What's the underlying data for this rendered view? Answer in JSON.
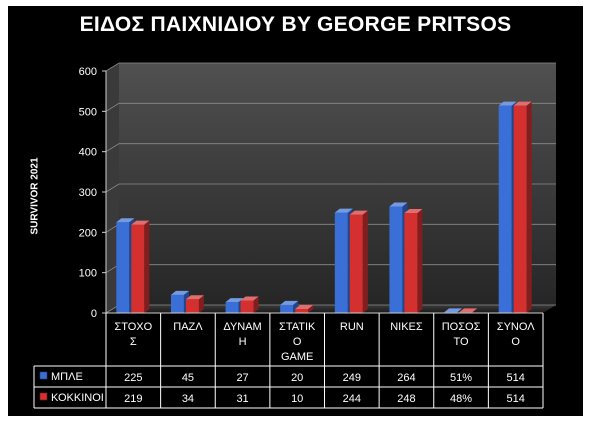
{
  "chart_data": {
    "type": "bar",
    "title": "ΕΙΔΟΣ ΠΑΙΧΝΙΔΙΟΥ BY GEORGE PRITSOS",
    "xlabel": "",
    "ylabel": "SURVIVOR 2021",
    "ylim": [
      0,
      600
    ],
    "yticks": [
      0,
      100,
      200,
      300,
      400,
      500,
      600
    ],
    "grid": true,
    "legend": "in data table",
    "categories": [
      [
        "ΣΤΟΧΟ",
        "Σ"
      ],
      [
        "ΠΑΖΛ"
      ],
      [
        "ΔΥΝΑΜ",
        "Η"
      ],
      [
        "ΣΤΑΤΙΚ",
        "Ο",
        "GAME"
      ],
      [
        "RUN"
      ],
      [
        "ΝΙΚΕΣ"
      ],
      [
        "ΠΟΣΟΣ",
        "ΤΟ"
      ],
      [
        "ΣΥΝΟΛ",
        "Ο"
      ]
    ],
    "series": [
      {
        "name": "ΜΠΛΕ",
        "color": "#3A6FD8",
        "values": [
          225,
          45,
          27,
          20,
          249,
          264,
          0.51,
          514
        ],
        "table_labels": [
          "225",
          "45",
          "27",
          "20",
          "249",
          "264",
          "51%",
          "514"
        ]
      },
      {
        "name": "ΚΟΚΚΙΝΟΙ",
        "color": "#D43030",
        "values": [
          219,
          34,
          31,
          10,
          244,
          248,
          0.48,
          514
        ],
        "table_labels": [
          "219",
          "34",
          "31",
          "10",
          "244",
          "248",
          "48%",
          "514"
        ]
      }
    ]
  }
}
